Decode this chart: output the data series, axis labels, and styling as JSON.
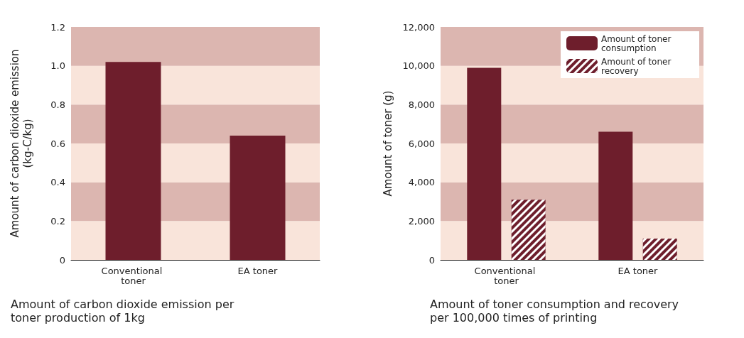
{
  "chart_data": [
    {
      "type": "bar",
      "categories": [
        "Conventional toner",
        "EA toner"
      ],
      "xlabel": "Amount of carbon dioxide emission per toner production of 1kg",
      "ylabel": "Amount of carbon dioxide emission\n(kg-C/kg)",
      "series": [
        {
          "color": "#6e1e2c",
          "values": [
            1.02,
            0.64
          ]
        }
      ],
      "ylim": [
        0,
        1.2
      ],
      "yticks": [
        0,
        0.2,
        0.4,
        0.6,
        {
          "value": 0.8,
          "label": "0.8"
        },
        {
          "value": 1,
          "label": "1.0"
        },
        1.2
      ],
      "grid": false,
      "legend": false,
      "bands": [
        {
          "axis": "y",
          "from": 0,
          "to": 0.2,
          "color": "#f9e4da"
        },
        {
          "axis": "y",
          "from": 0.2,
          "to": 0.4,
          "color": "#dcb6b0"
        },
        {
          "axis": "y",
          "from": 0.4,
          "to": 0.6,
          "color": "#f9e4da"
        },
        {
          "axis": "y",
          "from": 0.6,
          "to": 0.8,
          "color": "#dcb6b0"
        },
        {
          "axis": "y",
          "from": 0.8,
          "to": 1,
          "color": "#f9e4da"
        },
        {
          "axis": "y",
          "from": 1,
          "to": 1.2,
          "color": "#dcb6b0"
        }
      ]
    },
    {
      "type": "bar",
      "categories": [
        "Conventional toner",
        "EA toner"
      ],
      "xlabel": "Amount of toner consumption and recovery per 100,000 times of printing",
      "ylabel": "Amount of toner (g)",
      "series": [
        {
          "name": "Amount of toner consumption",
          "color": "#6e1e2c",
          "values": [
            9900,
            6600
          ]
        },
        {
          "name": "Amount of toner recovery",
          "color": "#6e1e2c",
          "values": [
            3100,
            1100
          ]
        }
      ],
      "ylim": [
        0,
        12000
      ],
      "yticks": [
        0,
        {
          "value": 2000,
          "label": "2,000"
        },
        {
          "value": 4000,
          "label": "4,000"
        },
        {
          "value": 6000,
          "label": "6,000"
        },
        {
          "value": 8000,
          "label": "8,000"
        },
        {
          "value": 10000,
          "label": "10,000"
        },
        {
          "value": 12000,
          "label": "12,000"
        }
      ],
      "grid": false,
      "legend": "top right",
      "bands": [
        {
          "axis": "y",
          "from": 0,
          "to": 2000,
          "color": "#f9e4da"
        },
        {
          "axis": "y",
          "from": 2000,
          "to": 4000,
          "color": "#dcb6b0"
        },
        {
          "axis": "y",
          "from": 4000,
          "to": 6000,
          "color": "#f9e4da"
        },
        {
          "axis": "y",
          "from": 6000,
          "to": 8000,
          "color": "#dcb6b0"
        },
        {
          "axis": "y",
          "from": 8000,
          "to": 10000,
          "color": "#f9e4da"
        },
        {
          "axis": "y",
          "from": 10000,
          "to": 12000,
          "color": "#dcb6b0"
        }
      ]
    }
  ]
}
